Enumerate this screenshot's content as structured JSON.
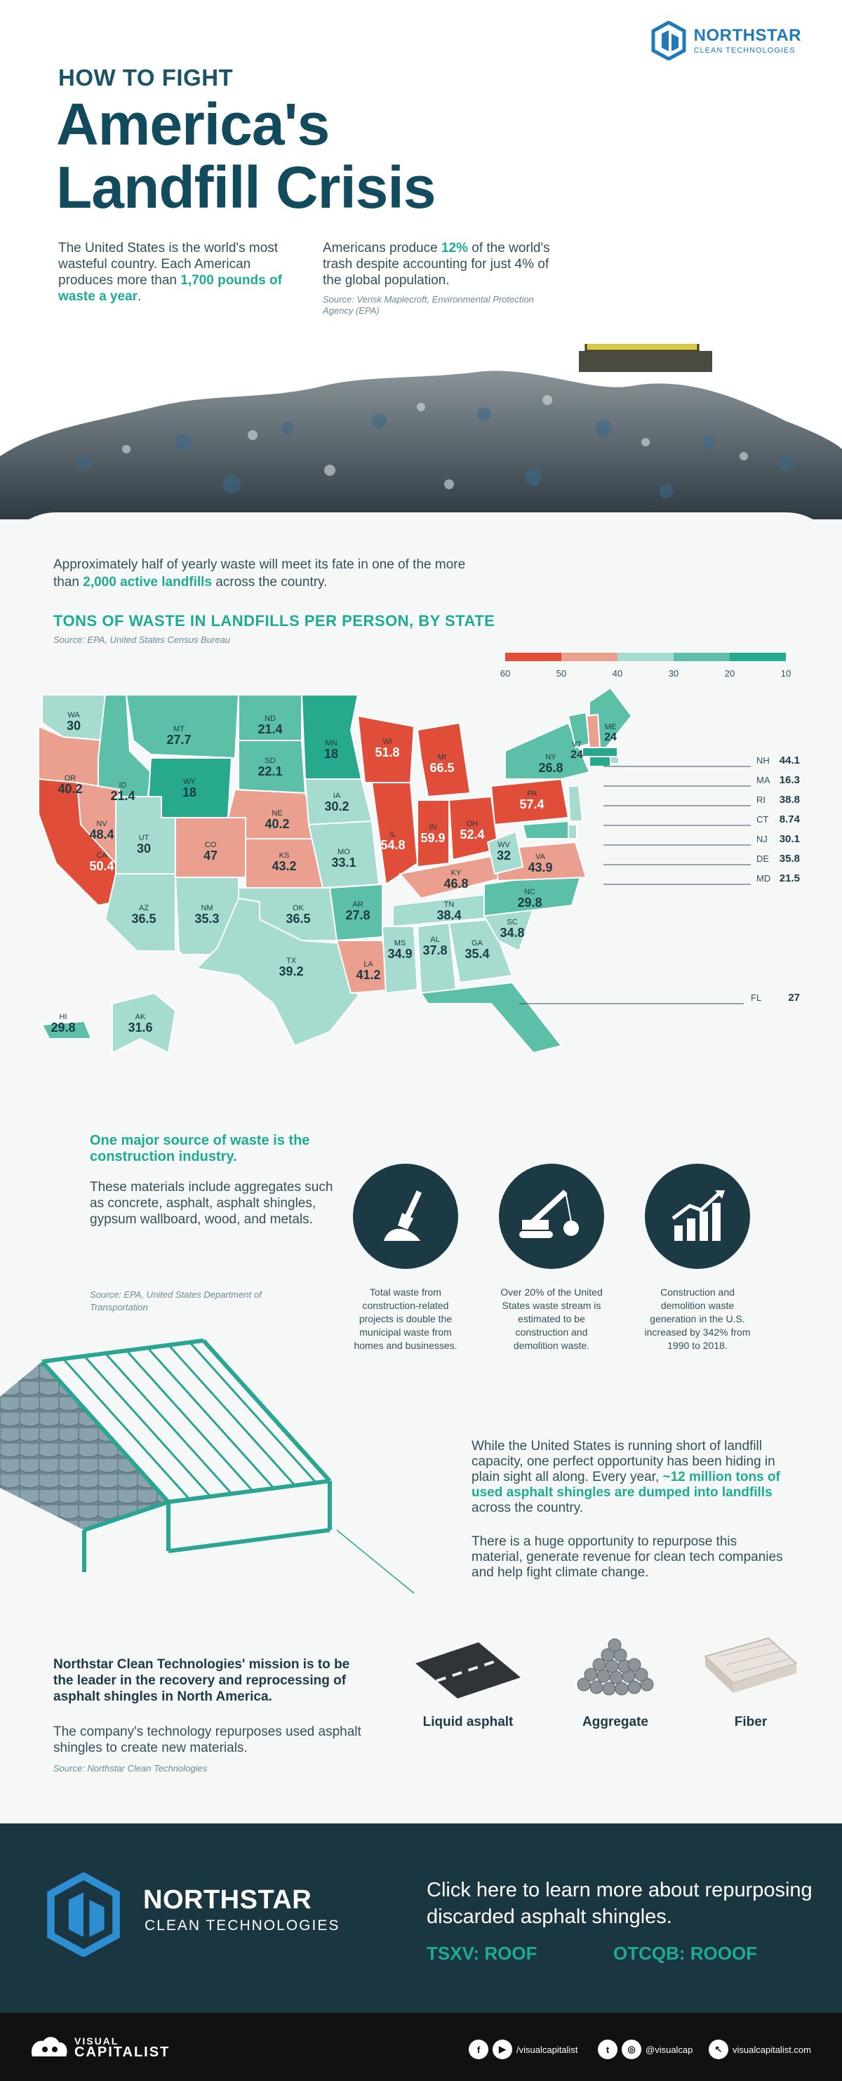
{
  "brand": {
    "name": "NORTHSTAR",
    "sub": "CLEAN TECHNOLOGIES"
  },
  "hero": {
    "kicker": "HOW TO FIGHT",
    "title_line1": "America's",
    "title_line2": "Landfill Crisis",
    "left_a": "The United States is the world's most wasteful country. Each American produces more than ",
    "left_hl": "1,700 pounds of waste a year",
    "left_b": ".",
    "right_a": "Americans produce ",
    "right_hl": "12%",
    "right_b": " of the world's trash despite accounting for just 4% of the global population.",
    "right_src": "Source: Verisk Maplecroft, Environmental Protection Agency (EPA)"
  },
  "intro": {
    "a": "Approximately half of yearly waste will meet its fate in one of the more than ",
    "hl": "2,000 active landfills",
    "b": " across the country."
  },
  "map": {
    "title": "TONS OF WASTE IN LANDFILLS PER PERSON, BY STATE",
    "source": "Source: EPA, United States Census Bureau",
    "legend_ticks": [
      "60",
      "50",
      "40",
      "30",
      "20",
      "10"
    ],
    "colors": {
      "red": "#e04e39",
      "salmon": "#eba08f",
      "light": "#a6dbd0",
      "mid": "#5cbfa7",
      "dark": "#27a98e"
    }
  },
  "chart_data": {
    "type": "table",
    "title": "TONS OF WASTE IN LANDFILLS PER PERSON, BY STATE",
    "columns": [
      "state",
      "value"
    ],
    "rows": [
      [
        "WA",
        30
      ],
      [
        "OR",
        40.2
      ],
      [
        "CA",
        50.4
      ],
      [
        "ID",
        21.4
      ],
      [
        "NV",
        48.4
      ],
      [
        "MT",
        27.7
      ],
      [
        "WY",
        18
      ],
      [
        "UT",
        30
      ],
      [
        "AZ",
        36.5
      ],
      [
        "CO",
        47
      ],
      [
        "NM",
        35.3
      ],
      [
        "ND",
        21.4
      ],
      [
        "SD",
        22.1
      ],
      [
        "NE",
        40.2
      ],
      [
        "KS",
        43.2
      ],
      [
        "OK",
        36.5
      ],
      [
        "TX",
        39.2
      ],
      [
        "MN",
        18
      ],
      [
        "IA",
        30.2
      ],
      [
        "MO",
        33.1
      ],
      [
        "AR",
        27.8
      ],
      [
        "LA",
        41.2
      ],
      [
        "WI",
        51.8
      ],
      [
        "IL",
        54.8
      ],
      [
        "MI",
        66.5
      ],
      [
        "IN",
        59.9
      ],
      [
        "OH",
        52.4
      ],
      [
        "KY",
        46.8
      ],
      [
        "TN",
        38.4
      ],
      [
        "MS",
        34.9
      ],
      [
        "AL",
        37.8
      ],
      [
        "GA",
        35.4
      ],
      [
        "FL",
        27
      ],
      [
        "SC",
        34.8
      ],
      [
        "NC",
        29.8
      ],
      [
        "VA",
        43.9
      ],
      [
        "WV",
        32
      ],
      [
        "PA",
        57.4
      ],
      [
        "NY",
        26.8
      ],
      [
        "VT",
        24
      ],
      [
        "ME",
        24
      ],
      [
        "NH",
        44.1
      ],
      [
        "MA",
        16.3
      ],
      [
        "RI",
        38.8
      ],
      [
        "CT",
        8.74
      ],
      [
        "NJ",
        30.1
      ],
      [
        "DE",
        35.8
      ],
      [
        "MD",
        21.5
      ],
      [
        "HI",
        29.8
      ],
      [
        "AK",
        31.6
      ]
    ]
  },
  "construction": {
    "major": "One major source of waste is the construction industry.",
    "materials": "These materials include aggregates such as concrete, asphalt, asphalt shingles, gypsum wallboard, wood, and metals.",
    "source": "Source: EPA, United States Department of Transportation",
    "stats": [
      {
        "text": "Total waste from construction-related projects is double the municipal waste from homes and businesses.",
        "icon": "shovel-icon"
      },
      {
        "text": "Over 20% of the United States waste stream is estimated to be construction and demolition waste.",
        "icon": "crane-icon"
      },
      {
        "text": "Construction and demolition waste generation in the U.S. increased by 342% from 1990 to 2018.",
        "icon": "growth-chart-icon"
      }
    ]
  },
  "opportunity": {
    "a": "While the United States is running short of landfill capacity, one perfect opportunity has been hiding in plain sight all along. Every year, ",
    "hl": "~12 million tons of used asphalt shingles are dumped into landfills",
    "b": " across the country.",
    "p2": "There is a huge opportunity to repurpose this material, generate revenue for clean tech companies and help fight climate change."
  },
  "mission": {
    "text": "Northstar Clean Technologies' mission is to be the leader in the recovery and reprocessing of asphalt shingles in North America.",
    "repurpose": "The company's technology repurposes used asphalt shingles to create new materials.",
    "source": "Source: Northstar Clean Technologies",
    "materials": [
      "Liquid asphalt",
      "Aggregate",
      "Fiber"
    ]
  },
  "footer": {
    "cta": "Click here to learn more about repurposing discarded asphalt shingles.",
    "tsxv": "TSXV: ROOF",
    "otcqb": "OTCQB: ROOOF"
  },
  "vc": {
    "brand_top": "VISUAL",
    "brand_bottom": "CAPITALIST",
    "handle1": "/visualcapitalist",
    "handle2": "@visualcap",
    "site": "visualcapitalist.com"
  }
}
